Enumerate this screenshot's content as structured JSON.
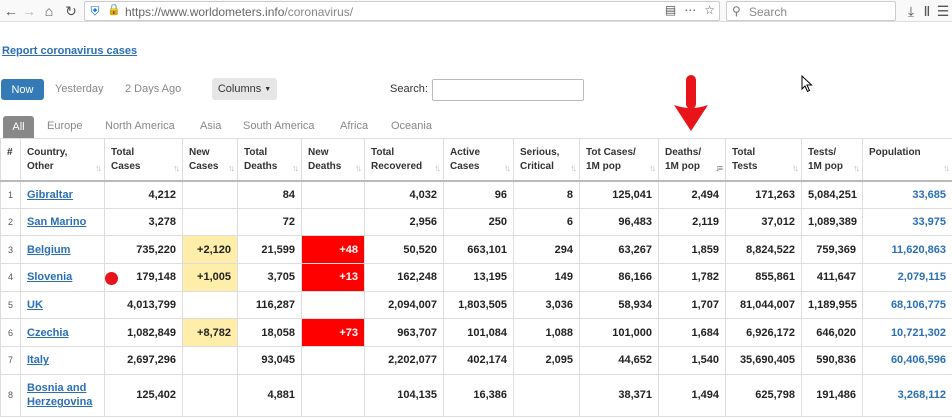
{
  "browser": {
    "url_host": "https://www.worldometers.info",
    "url_path": "/coronavirus/",
    "search_placeholder": "Search"
  },
  "page": {
    "report_link": "Report coronavirus cases",
    "day_tabs": [
      "Now",
      "Yesterday",
      "2 Days Ago"
    ],
    "columns_button": "Columns",
    "search_label": "Search:",
    "region_tabs": [
      "All",
      "Europe",
      "North America",
      "Asia",
      "South America",
      "Africa",
      "Oceania"
    ]
  },
  "colors": {
    "link_blue": "#2a6fb6",
    "now_button": "#337ab7",
    "new_cases_highlight": "#ffeeaa",
    "new_deaths_highlight": "#ff0000",
    "annotation_red": "#e8141a"
  },
  "table": {
    "headers": [
      [
        "#",
        ""
      ],
      [
        "Country,",
        "Other"
      ],
      [
        "Total",
        "Cases"
      ],
      [
        "New",
        "Cases"
      ],
      [
        "Total",
        "Deaths"
      ],
      [
        "New",
        "Deaths"
      ],
      [
        "Total",
        "Recovered"
      ],
      [
        "Active",
        "Cases"
      ],
      [
        "Serious,",
        "Critical"
      ],
      [
        "Tot Cases/",
        "1M pop"
      ],
      [
        "Deaths/",
        "1M pop"
      ],
      [
        "Total",
        "Tests"
      ],
      [
        "Tests/",
        "1M pop"
      ],
      [
        "Population",
        ""
      ]
    ],
    "sorted_column": 10,
    "rows": [
      {
        "rank": "1",
        "country": "Gibraltar",
        "total_cases": "4,212",
        "new_cases": "",
        "total_deaths": "84",
        "new_deaths": "",
        "total_recovered": "4,032",
        "active": "96",
        "serious": "8",
        "cases_per_m": "125,041",
        "deaths_per_m": "2,494",
        "total_tests": "171,263",
        "tests_per_m": "5,084,251",
        "population": "33,685"
      },
      {
        "rank": "2",
        "country": "San Marino",
        "total_cases": "3,278",
        "new_cases": "",
        "total_deaths": "72",
        "new_deaths": "",
        "total_recovered": "2,956",
        "active": "250",
        "serious": "6",
        "cases_per_m": "96,483",
        "deaths_per_m": "2,119",
        "total_tests": "37,012",
        "tests_per_m": "1,089,389",
        "population": "33,975"
      },
      {
        "rank": "3",
        "country": "Belgium",
        "total_cases": "735,220",
        "new_cases": "+2,120",
        "total_deaths": "21,599",
        "new_deaths": "+48",
        "total_recovered": "50,520",
        "active": "663,101",
        "serious": "294",
        "cases_per_m": "63,267",
        "deaths_per_m": "1,859",
        "total_tests": "8,824,522",
        "tests_per_m": "759,369",
        "population": "11,620,863"
      },
      {
        "rank": "4",
        "country": "Slovenia",
        "total_cases": "179,148",
        "new_cases": "+1,005",
        "total_deaths": "3,705",
        "new_deaths": "+13",
        "total_recovered": "162,248",
        "active": "13,195",
        "serious": "149",
        "cases_per_m": "86,166",
        "deaths_per_m": "1,782",
        "total_tests": "855,861",
        "tests_per_m": "411,647",
        "population": "2,079,115"
      },
      {
        "rank": "5",
        "country": "UK",
        "total_cases": "4,013,799",
        "new_cases": "",
        "total_deaths": "116,287",
        "new_deaths": "",
        "total_recovered": "2,094,007",
        "active": "1,803,505",
        "serious": "3,036",
        "cases_per_m": "58,934",
        "deaths_per_m": "1,707",
        "total_tests": "81,044,007",
        "tests_per_m": "1,189,955",
        "population": "68,106,775"
      },
      {
        "rank": "6",
        "country": "Czechia",
        "total_cases": "1,082,849",
        "new_cases": "+8,782",
        "total_deaths": "18,058",
        "new_deaths": "+73",
        "total_recovered": "963,707",
        "active": "101,084",
        "serious": "1,088",
        "cases_per_m": "101,000",
        "deaths_per_m": "1,684",
        "total_tests": "6,926,172",
        "tests_per_m": "646,020",
        "population": "10,721,302"
      },
      {
        "rank": "7",
        "country": "Italy",
        "total_cases": "2,697,296",
        "new_cases": "",
        "total_deaths": "93,045",
        "new_deaths": "",
        "total_recovered": "2,202,077",
        "active": "402,174",
        "serious": "2,095",
        "cases_per_m": "44,652",
        "deaths_per_m": "1,540",
        "total_tests": "35,690,405",
        "tests_per_m": "590,836",
        "population": "60,406,596"
      },
      {
        "rank": "8",
        "country": "Bosnia and Herzegovina",
        "country_line1": "Bosnia and",
        "country_line2": "Herzegovina",
        "total_cases": "125,402",
        "new_cases": "",
        "total_deaths": "4,881",
        "new_deaths": "",
        "total_recovered": "104,135",
        "active": "16,386",
        "serious": "",
        "cases_per_m": "38,371",
        "deaths_per_m": "1,494",
        "total_tests": "625,798",
        "tests_per_m": "191,486",
        "population": "3,268,112"
      }
    ]
  }
}
